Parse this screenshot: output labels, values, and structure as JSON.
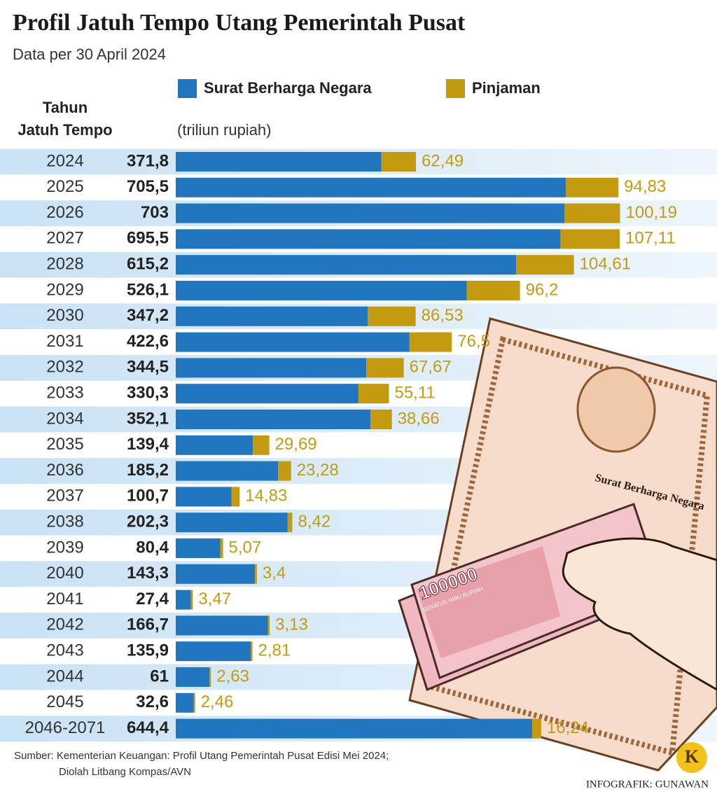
{
  "chart_data": {
    "type": "stacked-bar-horizontal",
    "title": "Profil Jatuh Tempo Utang Pemerintah Pusat",
    "subtitle": "Data per 30 April 2024",
    "category_header": [
      "Tahun",
      "Jatuh Tempo"
    ],
    "unit_label": "(triliun rupiah)",
    "categories": [
      "2024",
      "2025",
      "2026",
      "2027",
      "2028",
      "2029",
      "2030",
      "2031",
      "2032",
      "2033",
      "2034",
      "2035",
      "2036",
      "2037",
      "2038",
      "2039",
      "2040",
      "2041",
      "2042",
      "2043",
      "2044",
      "2045",
      "2046-2071"
    ],
    "series": [
      {
        "name": "Surat Berharga Negara",
        "color": "#2176bf",
        "values": [
          371.8,
          705.5,
          703,
          695.5,
          615.2,
          526.1,
          347.2,
          422.6,
          344.5,
          330.3,
          352.1,
          139.4,
          185.2,
          100.7,
          202.3,
          80.4,
          143.3,
          27.4,
          166.7,
          135.9,
          61,
          32.6,
          644.4
        ],
        "value_labels": [
          "371,8",
          "705,5",
          "703",
          "695,5",
          "615,2",
          "526,1",
          "347,2",
          "422,6",
          "344,5",
          "330,3",
          "352,1",
          "139,4",
          "185,2",
          "100,7",
          "202,3",
          "80,4",
          "143,3",
          "27,4",
          "166,7",
          "135,9",
          "61",
          "32,6",
          "644,4"
        ]
      },
      {
        "name": "Pinjaman",
        "color": "#c49a10",
        "values": [
          62.49,
          94.83,
          100.19,
          107.11,
          104.61,
          96.2,
          86.53,
          76.5,
          67.67,
          55.11,
          38.66,
          29.69,
          23.28,
          14.83,
          8.42,
          5.07,
          3.4,
          3.47,
          3.13,
          2.81,
          2.63,
          2.46,
          16.24
        ],
        "value_labels": [
          "62,49",
          "94,83",
          "100,19",
          "107,11",
          "104,61",
          "96,2",
          "86,53",
          "76,5",
          "67,67",
          "55,11",
          "38,66",
          "29,69",
          "23,28",
          "14,83",
          "8,42",
          "5,07",
          "3,4",
          "3,47",
          "3,13",
          "2,81",
          "2,63",
          "2,46",
          "16,24"
        ]
      }
    ],
    "source_lines": [
      "Sumber: Kementerian Keuangan: Profil Utang Pemerintah Pusat Edisi Mei 2024;",
      "Diolah Litbang Kompas/AVN"
    ],
    "credit": "INFOGRAFIK: GUNAWAN",
    "logo": "K"
  },
  "illustration": {
    "banknote_value": "100000",
    "banknote_words": "SERATUS RIBU RUPIAH"
  }
}
